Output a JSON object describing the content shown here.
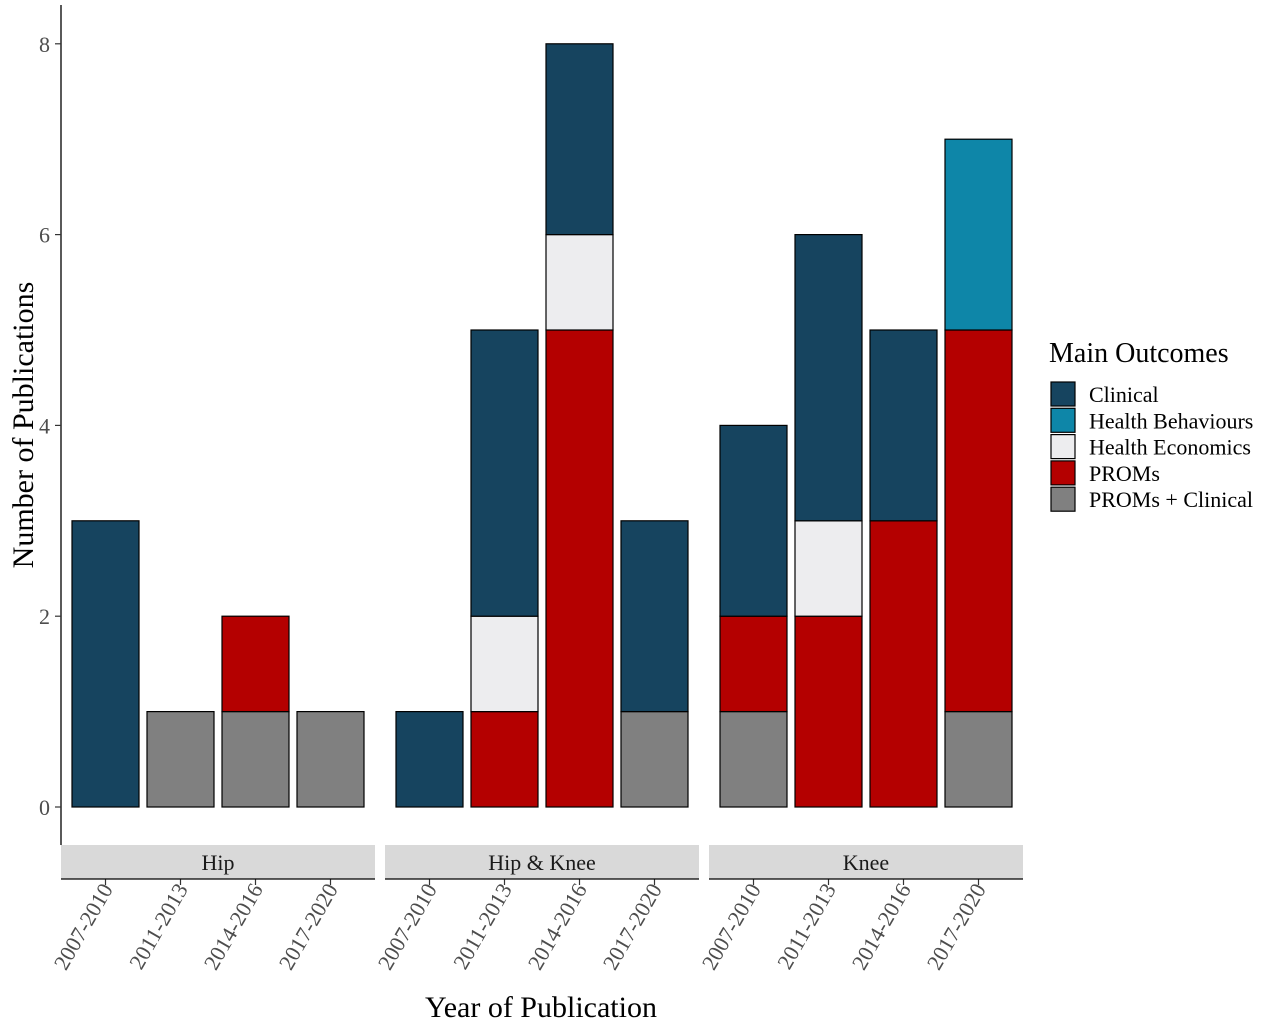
{
  "chart_data": {
    "type": "bar",
    "stacked": true,
    "ylabel": "Number of Publications",
    "xlabel": "Year of Publication",
    "ylim": [
      0,
      8.4
    ],
    "yticks": [
      0,
      2,
      4,
      6,
      8
    ],
    "grid": false,
    "legend": {
      "title": "Main Outcomes",
      "position": "right",
      "entries": [
        "Clinical",
        "Health Behaviours",
        "Health Economics",
        "PROMs",
        "PROMs + Clinical"
      ]
    },
    "colors": {
      "Clinical": "#16445f",
      "Health Behaviours": "#0e86a8",
      "Health Economics": "#ededef",
      "PROMs": "#b40000",
      "PROMs + Clinical": "#808080"
    },
    "stack_order": [
      "PROMs + Clinical",
      "PROMs",
      "Health Economics",
      "Health Behaviours",
      "Clinical"
    ],
    "categories": [
      "2007-2010",
      "2011-2013",
      "2014-2016",
      "2017-2020"
    ],
    "panels": [
      {
        "name": "Hip",
        "bars": [
          {
            "category": "2007-2010",
            "values": {
              "Clinical": 3
            }
          },
          {
            "category": "2011-2013",
            "values": {
              "PROMs + Clinical": 1
            }
          },
          {
            "category": "2014-2016",
            "values": {
              "PROMs + Clinical": 1,
              "PROMs": 1
            }
          },
          {
            "category": "2017-2020",
            "values": {
              "PROMs + Clinical": 1
            }
          }
        ]
      },
      {
        "name": "Hip & Knee",
        "bars": [
          {
            "category": "2007-2010",
            "values": {
              "Clinical": 1
            }
          },
          {
            "category": "2011-2013",
            "values": {
              "PROMs": 1,
              "Health Economics": 1,
              "Clinical": 3
            }
          },
          {
            "category": "2014-2016",
            "values": {
              "PROMs": 5,
              "Health Economics": 1,
              "Clinical": 2
            }
          },
          {
            "category": "2017-2020",
            "values": {
              "PROMs + Clinical": 1,
              "Clinical": 2
            }
          }
        ]
      },
      {
        "name": "Knee",
        "bars": [
          {
            "category": "2007-2010",
            "values": {
              "PROMs + Clinical": 1,
              "PROMs": 1,
              "Clinical": 2
            }
          },
          {
            "category": "2011-2013",
            "values": {
              "PROMs": 2,
              "Health Economics": 1,
              "Clinical": 3
            }
          },
          {
            "category": "2014-2016",
            "values": {
              "PROMs": 3,
              "Clinical": 2
            }
          },
          {
            "category": "2017-2020",
            "values": {
              "PROMs + Clinical": 1,
              "PROMs": 4,
              "Health Behaviours": 2
            }
          }
        ]
      }
    ]
  }
}
